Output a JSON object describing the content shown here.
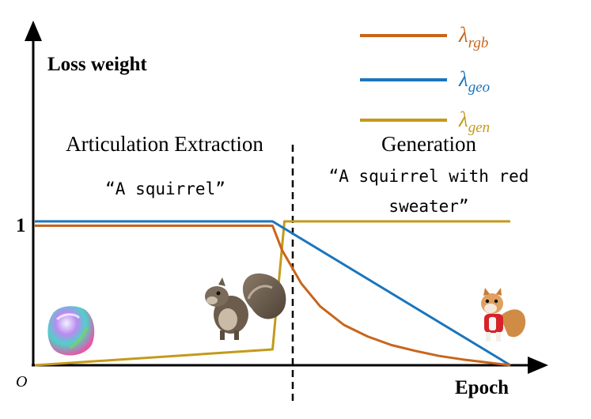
{
  "chart_data": {
    "type": "line",
    "ylabel": "Loss weight",
    "xlabel": "Epoch",
    "origin_label": "O",
    "y_tick_label": "1",
    "phases": [
      {
        "name": "Articulation Extraction",
        "prompt": "“A squirrel”"
      },
      {
        "name": "Generation",
        "prompt_lines": [
          "“A squirrel with red",
          "sweater”"
        ]
      }
    ],
    "legend_position": "top-right",
    "series": [
      {
        "key": "rgb",
        "name_main": "λ",
        "name_sub": "rgb",
        "color": "#c8651b",
        "description": "constant at 1 during extraction, then decays to 0"
      },
      {
        "key": "geo",
        "name_main": "λ",
        "name_sub": "geo",
        "color": "#1b75bc",
        "description": "constant at 1 during extraction, then decreases linearly to 0"
      },
      {
        "key": "gen",
        "name_main": "λ",
        "name_sub": "gen",
        "color": "#c49a1a",
        "description": "slowly rising from 0, then jumps to 1 in the generation phase"
      }
    ],
    "x_range": [
      0,
      1
    ],
    "y_range": [
      0,
      1.55
    ],
    "phase_boundary_x": 0.5,
    "data": {
      "rgb": {
        "x": [
          0.0,
          0.5,
          0.52,
          0.56,
          0.6,
          0.65,
          0.7,
          0.75,
          0.8,
          0.85,
          0.9,
          0.95,
          1.0
        ],
        "y": [
          0.97,
          0.97,
          0.8,
          0.57,
          0.41,
          0.28,
          0.2,
          0.14,
          0.1,
          0.065,
          0.04,
          0.02,
          0.0
        ]
      },
      "geo": {
        "x": [
          0.0,
          0.5,
          1.0
        ],
        "y": [
          1.0,
          1.0,
          0.0
        ]
      },
      "gen": {
        "x": [
          0.0,
          0.5,
          0.525,
          1.0
        ],
        "y": [
          0.0,
          0.11,
          1.0,
          1.0
        ]
      }
    }
  }
}
